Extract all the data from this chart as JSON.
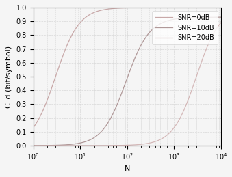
{
  "title": "",
  "xlabel": "N",
  "ylabel": "C_d (bit/symbol)",
  "xlim": [
    1,
    10000
  ],
  "ylim": [
    0,
    1
  ],
  "legend": [
    "SNR=0dB",
    "SNR=10dB",
    "SNR=20dB"
  ],
  "line_colors": [
    "#c8a8a8",
    "#b09898",
    "#d4b8b8"
  ],
  "snr_db": [
    0,
    10,
    20
  ],
  "background_color": "#f5f5f5",
  "grid_color": "#d8d8d8",
  "yticks": [
    0,
    0.1,
    0.2,
    0.3,
    0.4,
    0.5,
    0.6,
    0.7,
    0.8,
    0.9,
    1.0
  ],
  "tick_fontsize": 7,
  "label_fontsize": 8,
  "legend_fontsize": 7,
  "linewidth": 0.9,
  "alpha_scale": 1.0,
  "capacity_max": 1.0,
  "snr0_scale": 1.0,
  "snr10_scale": 0.93,
  "snr20_scale": 1.0
}
